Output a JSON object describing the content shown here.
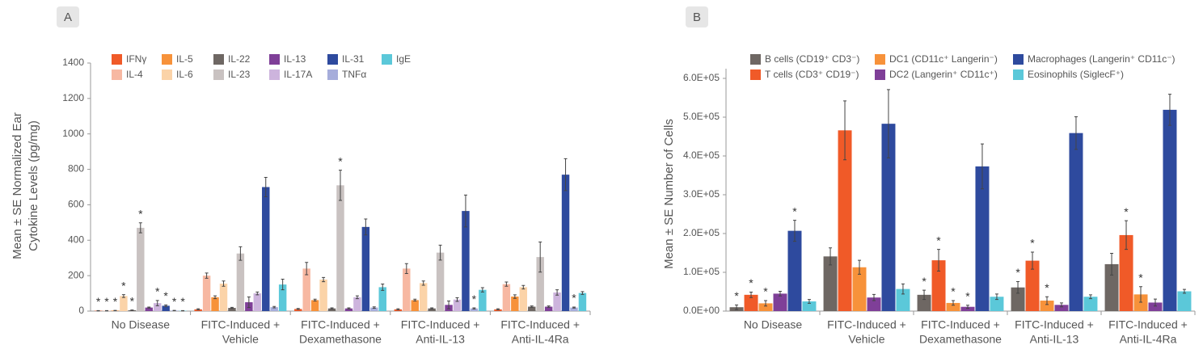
{
  "chart_data": [
    {
      "type": "bar",
      "panel_label": "A",
      "y_label": [
        "Mean ± SE Normalized Ear",
        "Cytokine Levels (pg/mg)"
      ],
      "categories": [
        [
          "No Disease"
        ],
        [
          "FITC-Induced +",
          "Vehicle"
        ],
        [
          "FITC-Induced +",
          "Dexamethasone"
        ],
        [
          "FITC-Induced +",
          "Anti-IL-13"
        ],
        [
          "FITC-Induced +",
          "Anti-IL-4Ra"
        ]
      ],
      "ylim": [
        0,
        1400
      ],
      "yticks": [
        0,
        200,
        400,
        600,
        800,
        1000,
        1200,
        1400
      ],
      "series": [
        {
          "name": "IFNγ",
          "color": "#f05a28",
          "values": [
            2,
            10,
            12,
            10,
            10
          ],
          "errors": [
            1,
            3,
            3,
            3,
            3
          ],
          "stars": [
            "*",
            null,
            null,
            null,
            null
          ]
        },
        {
          "name": "IL-4",
          "color": "#f7b8a2",
          "values": [
            2,
            200,
            240,
            240,
            152
          ],
          "errors": [
            1,
            15,
            35,
            28,
            12
          ],
          "stars": [
            "*",
            null,
            null,
            null,
            null
          ]
        },
        {
          "name": "IL-5",
          "color": "#f7923a",
          "values": [
            3,
            78,
            62,
            62,
            82
          ],
          "errors": [
            1,
            8,
            5,
            5,
            10
          ],
          "stars": [
            "*",
            null,
            null,
            null,
            null
          ]
        },
        {
          "name": "IL-6",
          "color": "#fbd3a8",
          "values": [
            85,
            155,
            178,
            158,
            135
          ],
          "errors": [
            8,
            15,
            12,
            12,
            10
          ],
          "stars": [
            "*",
            null,
            null,
            null,
            null
          ]
        },
        {
          "name": "IL-22",
          "color": "#6e6763",
          "values": [
            5,
            18,
            15,
            15,
            25
          ],
          "errors": [
            1,
            3,
            3,
            3,
            4
          ],
          "stars": [
            "*",
            null,
            null,
            null,
            null
          ]
        },
        {
          "name": "IL-23",
          "color": "#c9c2c1",
          "values": [
            470,
            325,
            710,
            330,
            305
          ],
          "errors": [
            28,
            38,
            85,
            42,
            85
          ],
          "stars": [
            "*",
            null,
            "*",
            null,
            null
          ]
        },
        {
          "name": "IL-13",
          "color": "#7f3f98",
          "values": [
            20,
            50,
            15,
            35,
            25
          ],
          "errors": [
            3,
            30,
            3,
            22,
            4
          ],
          "stars": [
            null,
            null,
            null,
            null,
            null
          ]
        },
        {
          "name": "IL-17A",
          "color": "#cdb4dd",
          "values": [
            45,
            100,
            78,
            65,
            105
          ],
          "errors": [
            15,
            8,
            8,
            10,
            15
          ],
          "stars": [
            "*",
            null,
            null,
            null,
            null
          ]
        },
        {
          "name": "IL-31",
          "color": "#2e4a9e",
          "values": [
            30,
            700,
            475,
            565,
            770
          ],
          "errors": [
            5,
            55,
            45,
            90,
            90
          ],
          "stars": [
            "*",
            null,
            null,
            null,
            null
          ]
        },
        {
          "name": "TNFα",
          "color": "#a6addb",
          "values": [
            3,
            22,
            20,
            15,
            20
          ],
          "errors": [
            1,
            4,
            4,
            3,
            3
          ],
          "stars": [
            "*",
            null,
            null,
            "*",
            "*"
          ]
        },
        {
          "name": "IgE",
          "color": "#5bc8d9",
          "values": [
            2,
            150,
            135,
            120,
            102
          ],
          "errors": [
            1,
            30,
            18,
            12,
            8
          ],
          "stars": [
            "*",
            null,
            null,
            null,
            null
          ]
        }
      ]
    },
    {
      "type": "bar",
      "panel_label": "B",
      "y_label": [
        "Mean ± SE Number of Cells"
      ],
      "categories": [
        [
          "No Disease"
        ],
        [
          "FITC-Induced +",
          "Vehicle"
        ],
        [
          "FITC-Induced +",
          "Dexamethasone"
        ],
        [
          "FITC-Induced +",
          "Anti-IL-13"
        ],
        [
          "FITC-Induced +",
          "Anti-IL-4Ra"
        ]
      ],
      "ylim": [
        0,
        600000
      ],
      "yticks": [
        {
          "value": 0,
          "label": "0.0E+00"
        },
        {
          "value": 100000,
          "label": "1.0E+05"
        },
        {
          "value": 200000,
          "label": "2.0E+05"
        },
        {
          "value": 300000,
          "label": "3.0E+05"
        },
        {
          "value": 400000,
          "label": "4.0E+05"
        },
        {
          "value": 500000,
          "label": "5.0E+05"
        },
        {
          "value": 600000,
          "label": "6.0E+05"
        }
      ],
      "series": [
        {
          "name": "B cells (CD19⁺ CD3⁻)",
          "color": "#6e6763",
          "values": [
            10000,
            141000,
            42000,
            61000,
            121000
          ],
          "errors": [
            6000,
            22000,
            12000,
            15000,
            28000
          ],
          "stars": [
            "*",
            null,
            "*",
            "*",
            null
          ]
        },
        {
          "name": "T cells (CD3⁺ CD19⁻)",
          "color": "#f05a28",
          "values": [
            42000,
            466000,
            131000,
            130000,
            196000
          ],
          "errors": [
            7000,
            76000,
            28000,
            22000,
            37000
          ],
          "stars": [
            "*",
            null,
            "*",
            "*",
            "*"
          ]
        },
        {
          "name": "DC1 (CD11c⁺ Langerin⁻)",
          "color": "#f7923a",
          "values": [
            20000,
            113000,
            21000,
            27000,
            43000
          ],
          "errors": [
            7000,
            18000,
            6000,
            10000,
            20000
          ],
          "stars": [
            "*",
            null,
            "*",
            "*",
            "*"
          ]
        },
        {
          "name": "DC2 (Langerin⁺ CD11c⁺)",
          "color": "#7f3f98",
          "values": [
            45000,
            35000,
            11000,
            16000,
            22000
          ],
          "errors": [
            6000,
            8000,
            4000,
            5000,
            9000
          ],
          "stars": [
            null,
            null,
            "*",
            null,
            null
          ]
        },
        {
          "name": "Macrophages (Langerin⁺ CD11c⁻)",
          "color": "#2e4a9e",
          "values": [
            207000,
            483000,
            373000,
            459000,
            519000
          ],
          "errors": [
            27000,
            88000,
            58000,
            42000,
            40000
          ],
          "stars": [
            "*",
            null,
            null,
            null,
            null
          ]
        },
        {
          "name": "Eosinophils (SiglecF⁺)",
          "color": "#5bc8d9",
          "values": [
            25000,
            57000,
            37000,
            37000,
            51000
          ],
          "errors": [
            5000,
            13000,
            7000,
            5000,
            5000
          ],
          "stars": [
            null,
            null,
            null,
            null,
            null
          ]
        }
      ]
    }
  ]
}
